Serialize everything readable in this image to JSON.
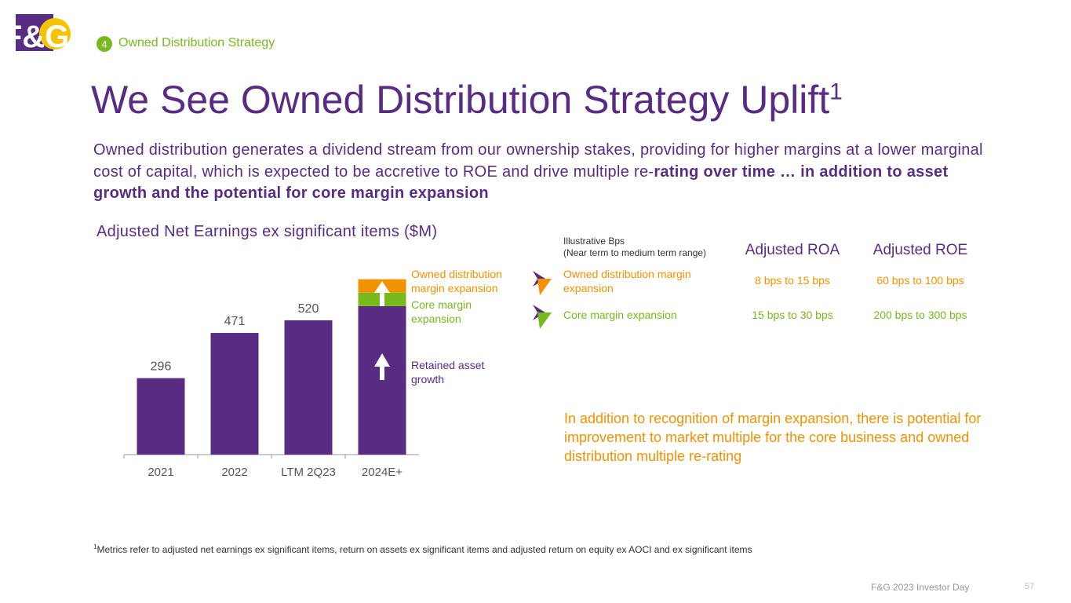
{
  "section": {
    "number": "4",
    "label": "Owned Distribution Strategy"
  },
  "logo": "F&G",
  "title": {
    "text": "We See Owned Distribution Strategy Uplift",
    "sup": "1"
  },
  "intro": {
    "text": "Owned distribution generates a dividend stream from our ownership stakes, providing for higher margins at a lower marginal cost of capital, which is expected to be accretive to ROE and drive multiple re-",
    "bold": "rating over time … in addition to asset growth and the potential for core margin expansion"
  },
  "chart_data": {
    "type": "stacked_bar",
    "title": "Adjusted Net Earnings ex significant items ($M)",
    "categories": [
      "2021",
      "2022",
      "LTM 2Q23",
      "2024E+"
    ],
    "series": [
      {
        "name": "Retained asset growth",
        "color": "#582c83",
        "values": [
          296,
          471,
          520,
          575
        ],
        "value_labels": [
          "296",
          "471",
          "520",
          null
        ]
      },
      {
        "name": "Core margin expansion",
        "color": "#78b91d",
        "values": [
          null,
          null,
          null,
          52
        ]
      },
      {
        "name": "Owned distribution margin expansion",
        "color": "#f39200",
        "values": [
          null,
          null,
          null,
          52
        ]
      }
    ]
  },
  "table": {
    "header": [
      "Illustrative Bps",
      "(Near term to medium term range)"
    ],
    "columns": [
      "Adjusted ROA",
      "Adjusted ROE"
    ],
    "rows": [
      [
        "Owned distribution margin expansion",
        "8 bps to 15 bps",
        "60 bps to 100 bps"
      ],
      [
        "Core margin expansion",
        "15 bps to 30 bps",
        "200 bps to 300 bps"
      ]
    ]
  },
  "note": "In addition to recognition of margin expansion, there is potential for improvement to market multiple for the core business and owned distribution multiple re-rating",
  "footnote": {
    "sup": "1",
    "text": "Metrics refer to adjusted net earnings ex significant items, return on assets ex significant items and adjusted return on equity ex AOCI and ex significant items"
  },
  "footer": {
    "event": "F&G 2023 Investor Day",
    "page": "57"
  }
}
